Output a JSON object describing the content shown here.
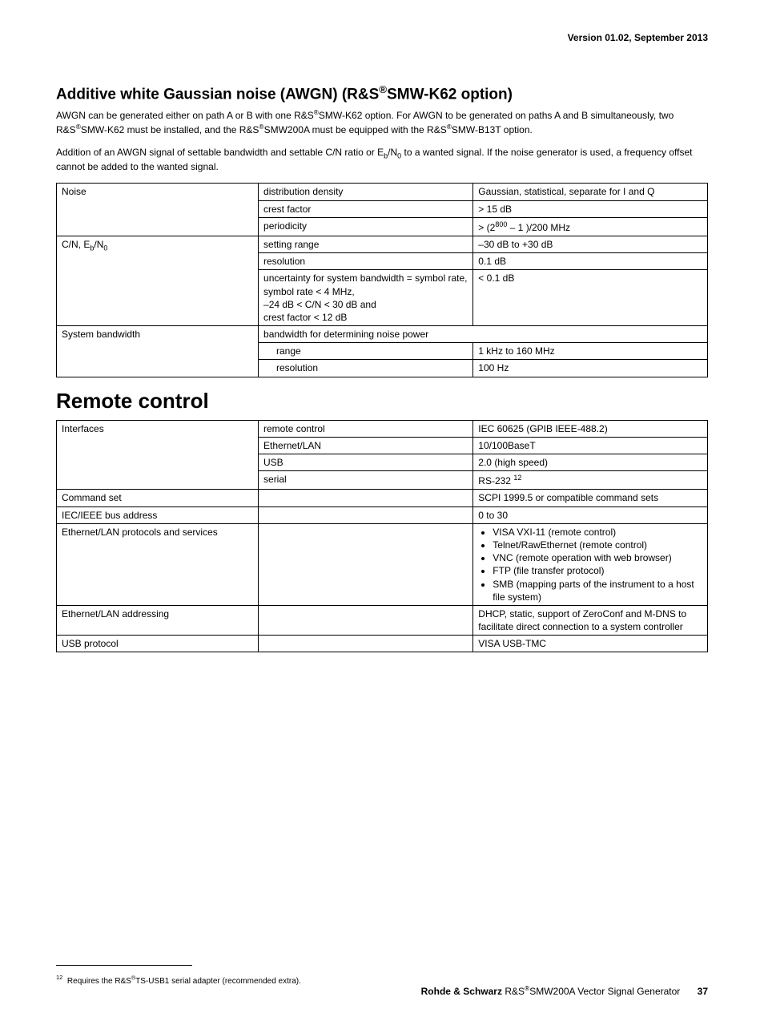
{
  "meta": {
    "version_line": "Version 01.02, September 2013"
  },
  "awgn": {
    "heading_pre": "Additive white Gaussian noise (AWGN) (R&S",
    "heading_post": "SMW-K62 option)",
    "para1_html": "AWGN can be generated either on path A or B with one R&S<span class=\"reg\">®</span>SMW-K62 option. For AWGN to be generated on paths A and B simultaneously, two R&S<span class=\"reg\">®</span>SMW-K62 must be installed, and the R&S<span class=\"reg\">®</span>SMW200A must be equipped with the R&S<span class=\"reg\">®</span>SMW-B13T option.",
    "para2_html": "Addition of an AWGN signal of settable bandwidth and settable C/N ratio or E<span class=\"sub\">b</span>/N<span class=\"sub\">0</span> to a wanted signal. If the noise generator is used, a frequency offset cannot be added to the wanted signal.",
    "t1": {
      "r1c1": "Noise",
      "r1c2": "distribution density",
      "r1c3": "Gaussian, statistical, separate for I and Q",
      "r2c2": "crest factor",
      "r2c3": "> 15 dB",
      "r3c2": "periodicity",
      "r3c3_html": "> (2<span class=\"sup\">800</span> – 1 )/200 MHz",
      "r4c1_html": "C/N, E<span class=\"sub\">b</span>/N<span class=\"sub\">0</span>",
      "r4c2": "setting range",
      "r4c3": "–30 dB to +30 dB",
      "r5c2": "resolution",
      "r5c3": "0.1 dB",
      "r6c2_html": "uncertainty for system bandwidth = symbol rate, symbol rate < 4 MHz,<br>–24 dB < C/N < 30 dB and<br>crest factor < 12 dB",
      "r6c3": "< 0.1 dB",
      "r7c1": "System bandwidth",
      "r7c23": "bandwidth for determining noise power",
      "r8c2": "range",
      "r8c3": "1 kHz to 160 MHz",
      "r9c2": "resolution",
      "r9c3": "100 Hz"
    }
  },
  "remote": {
    "heading": "Remote control",
    "t2": {
      "r1c1": "Interfaces",
      "r1c2": "remote control",
      "r1c3": "IEC 60625 (GPIB IEEE-488.2)",
      "r2c2": "Ethernet/LAN",
      "r2c3": "10/100BaseT",
      "r3c2": "USB",
      "r3c3": "2.0 (high speed)",
      "r4c2": "serial",
      "r4c3_html": "RS-232 <span class=\"sup\">12</span>",
      "r5c1": "Command set",
      "r5c3": "SCPI 1999.5 or compatible command sets",
      "r6c1": "IEC/IEEE bus address",
      "r6c3": "0 to 30",
      "r7c1": "Ethernet/LAN protocols and services",
      "r7c3_items": [
        "VISA VXI-11 (remote control)",
        "Telnet/RawEthernet (remote control)",
        "VNC (remote operation with web browser)",
        "FTP (file transfer protocol)",
        "SMB (mapping parts of the instrument to a host file system)"
      ],
      "r8c1": "Ethernet/LAN addressing",
      "r8c3": "DHCP, static, support of ZeroConf and M-DNS to facilitate direct connection to a system controller",
      "r9c1": "USB protocol",
      "r9c3": "VISA USB-TMC"
    }
  },
  "footnote": {
    "num": "12",
    "text_html": "Requires the R&S<span class=\"reg\">®</span>TS-USB1 serial adapter (recommended extra)."
  },
  "footer": {
    "brand": "Rohde & Schwarz",
    "product_html": "R&S<span class=\"reg\">®</span>SMW200A Vector Signal Generator",
    "page": "37"
  },
  "layout": {
    "col1_w": "31%",
    "col2_w": "33%",
    "col3_w": "36%"
  }
}
